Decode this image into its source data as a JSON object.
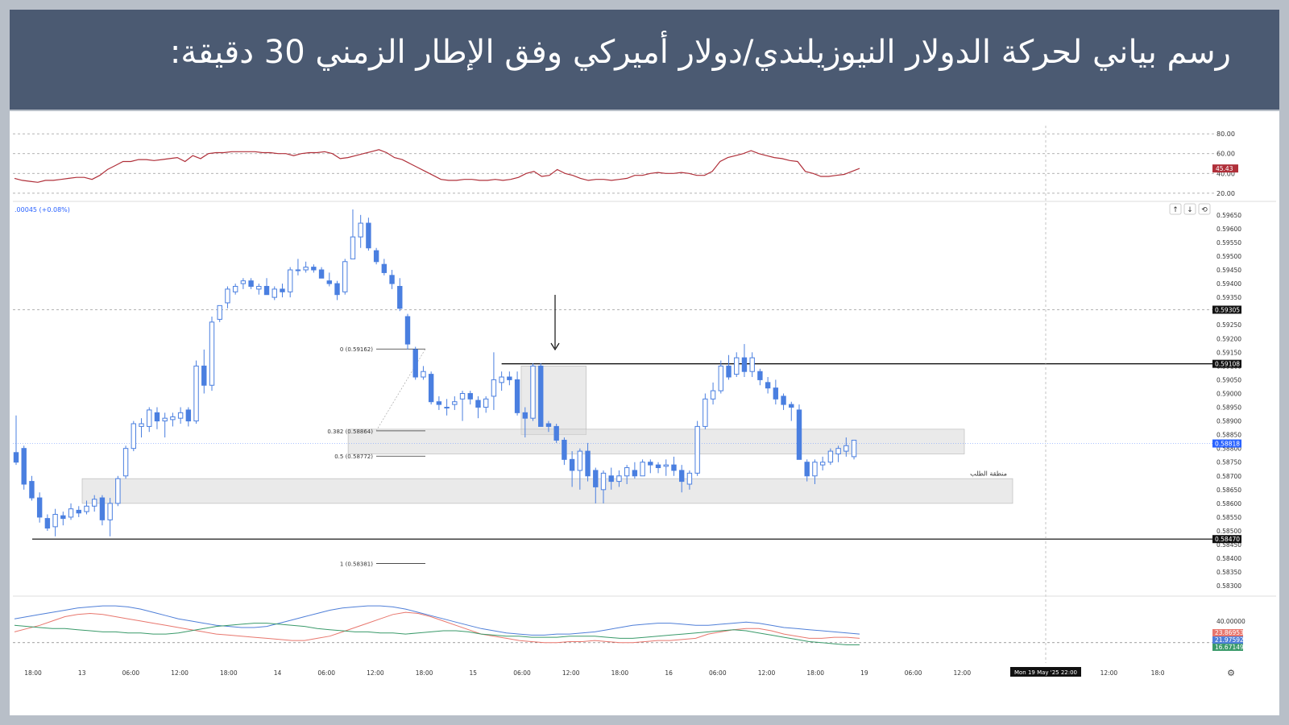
{
  "header": {
    "title": "رسم بياني لحركة الدولار النيوزيلندي/دولار أميركي وفق الإطار الزمني 30 دقيقة:"
  },
  "colors": {
    "header_bg": "#4b5a72",
    "candle": "#4a7fe0",
    "rsi_line": "#b0303a",
    "zone_fill": "#d9d9d9",
    "level_line": "#000000",
    "ind_blue": "#4f7fd8",
    "ind_red": "#e8776e",
    "ind_green": "#3a9a6a"
  },
  "chart_data": {
    "type": "candlestick",
    "change_label": ".00045 (+0.08%)",
    "rsi": {
      "ticks": [
        "80.00",
        "60.00",
        "40.00",
        "20.00"
      ],
      "current_label": "45.43",
      "values": [
        35,
        33,
        32,
        31,
        33,
        33,
        34,
        35,
        36,
        36,
        34,
        38,
        44,
        48,
        52,
        52,
        54,
        54,
        53,
        54,
        55,
        56,
        52,
        58,
        55,
        60,
        61,
        61,
        62,
        62,
        62,
        62,
        61,
        61,
        60,
        60,
        58,
        60,
        61,
        61,
        62,
        60,
        55,
        56,
        58,
        60,
        62,
        64,
        61,
        56,
        54,
        50,
        46,
        42,
        38,
        34,
        33,
        33,
        34,
        34,
        33,
        33,
        34,
        33,
        34,
        36,
        40,
        42,
        37,
        38,
        44,
        40,
        38,
        35,
        33,
        34,
        34,
        33,
        34,
        35,
        38,
        38,
        40,
        41,
        40,
        40,
        41,
        40,
        38,
        38,
        42,
        52,
        56,
        58,
        60,
        63,
        60,
        58,
        56,
        55,
        53,
        52,
        42,
        40,
        37,
        37,
        38,
        39,
        42,
        45
      ],
      "ylim": [
        15,
        85
      ]
    },
    "price": {
      "ticks": [
        "0.59650",
        "0.59600",
        "0.59550",
        "0.59500",
        "0.59450",
        "0.59400",
        "0.59350",
        "0.59300",
        "0.59250",
        "0.59200",
        "0.59150",
        "0.59100",
        "0.59050",
        "0.59000",
        "0.58950",
        "0.58900",
        "0.58850",
        "0.58800",
        "0.58750",
        "0.58700",
        "0.58650",
        "0.58600",
        "0.58550",
        "0.58500",
        "0.58450",
        "0.58400",
        "0.58350",
        "0.58300"
      ],
      "ylim": [
        0.5828,
        0.5967
      ],
      "current_label": "0.58818",
      "marked_label": "0.59305",
      "resistance": {
        "value": 0.59108,
        "label": "0.59108"
      },
      "support": {
        "value": 0.5847,
        "label": "0.58470"
      },
      "fib_levels": [
        {
          "label": "0 (0.59162)",
          "value": 0.59162
        },
        {
          "label": "0.382 (0.58864)",
          "value": 0.58864
        },
        {
          "label": "0.5 (0.58772)",
          "value": 0.58772
        },
        {
          "label": "1 (0.58381)",
          "value": 0.58381
        }
      ],
      "demand_zone_label": "منطقة الطلب",
      "candles": [
        [
          0.58785,
          0.5892,
          0.5874,
          0.5875
        ],
        [
          0.588,
          0.5881,
          0.5865,
          0.5867
        ],
        [
          0.5868,
          0.587,
          0.5861,
          0.5862
        ],
        [
          0.5862,
          0.5864,
          0.5853,
          0.5855
        ],
        [
          0.58545,
          0.5856,
          0.585,
          0.5851
        ],
        [
          0.58515,
          0.5858,
          0.5848,
          0.5856
        ],
        [
          0.58555,
          0.5857,
          0.5852,
          0.58545
        ],
        [
          0.5855,
          0.586,
          0.5854,
          0.5858
        ],
        [
          0.58575,
          0.5859,
          0.5855,
          0.58565
        ],
        [
          0.5857,
          0.5861,
          0.5856,
          0.5859
        ],
        [
          0.5859,
          0.5863,
          0.5857,
          0.58615
        ],
        [
          0.5862,
          0.5863,
          0.5852,
          0.5854
        ],
        [
          0.5854,
          0.5862,
          0.5848,
          0.586
        ],
        [
          0.586,
          0.587,
          0.5859,
          0.5869
        ],
        [
          0.587,
          0.5881,
          0.5869,
          0.588
        ],
        [
          0.588,
          0.589,
          0.5879,
          0.5889
        ],
        [
          0.5888,
          0.5891,
          0.5884,
          0.5889
        ],
        [
          0.5888,
          0.5895,
          0.5886,
          0.5894
        ],
        [
          0.5893,
          0.5895,
          0.5887,
          0.589
        ],
        [
          0.589,
          0.5893,
          0.5884,
          0.5891
        ],
        [
          0.58905,
          0.5893,
          0.5888,
          0.58915
        ],
        [
          0.5891,
          0.5895,
          0.5889,
          0.5893
        ],
        [
          0.5894,
          0.5895,
          0.5888,
          0.589
        ],
        [
          0.589,
          0.5912,
          0.5889,
          0.591
        ],
        [
          0.591,
          0.5916,
          0.59,
          0.5903
        ],
        [
          0.5903,
          0.5928,
          0.5901,
          0.5926
        ],
        [
          0.5927,
          0.5932,
          0.5926,
          0.5932
        ],
        [
          0.5933,
          0.5939,
          0.5931,
          0.5938
        ],
        [
          0.5937,
          0.594,
          0.5936,
          0.5939
        ],
        [
          0.594,
          0.5942,
          0.5938,
          0.5941
        ],
        [
          0.5941,
          0.5942,
          0.5938,
          0.5939
        ],
        [
          0.5938,
          0.594,
          0.5936,
          0.5939
        ],
        [
          0.5939,
          0.5942,
          0.5937,
          0.5936
        ],
        [
          0.5935,
          0.5939,
          0.5934,
          0.5938
        ],
        [
          0.5938,
          0.594,
          0.5935,
          0.5937
        ],
        [
          0.5937,
          0.5946,
          0.5935,
          0.5945
        ],
        [
          0.5945,
          0.5949,
          0.5943,
          0.5945
        ],
        [
          0.5945,
          0.5948,
          0.5944,
          0.5946
        ],
        [
          0.5946,
          0.5947,
          0.5944,
          0.5945
        ],
        [
          0.5945,
          0.5946,
          0.5942,
          0.5942
        ],
        [
          0.5941,
          0.5944,
          0.5939,
          0.594
        ],
        [
          0.594,
          0.5941,
          0.5934,
          0.5936
        ],
        [
          0.5937,
          0.5949,
          0.5936,
          0.5948
        ],
        [
          0.5949,
          0.5967,
          0.5949,
          0.5957
        ],
        [
          0.5957,
          0.5965,
          0.5953,
          0.5962
        ],
        [
          0.5962,
          0.5964,
          0.5952,
          0.5953
        ],
        [
          0.5952,
          0.5953,
          0.5947,
          0.5948
        ],
        [
          0.5947,
          0.5949,
          0.5943,
          0.5944
        ],
        [
          0.5943,
          0.5945,
          0.5938,
          0.594
        ],
        [
          0.5939,
          0.5942,
          0.593,
          0.5931
        ],
        [
          0.5928,
          0.5929,
          0.5916,
          0.5918
        ],
        [
          0.5916,
          0.5917,
          0.5905,
          0.5906
        ],
        [
          0.5906,
          0.591,
          0.5905,
          0.5908
        ],
        [
          0.5907,
          0.5908,
          0.5896,
          0.5897
        ],
        [
          0.5897,
          0.5899,
          0.5894,
          0.5896
        ],
        [
          0.5895,
          0.5898,
          0.5892,
          0.5895
        ],
        [
          0.5896,
          0.5899,
          0.5894,
          0.5897
        ],
        [
          0.5898,
          0.5901,
          0.589,
          0.59
        ],
        [
          0.59,
          0.5901,
          0.5896,
          0.5898
        ],
        [
          0.58975,
          0.5899,
          0.5891,
          0.5895
        ],
        [
          0.5895,
          0.5899,
          0.5893,
          0.5898
        ],
        [
          0.5899,
          0.5915,
          0.5894,
          0.5905
        ],
        [
          0.5904,
          0.5908,
          0.5901,
          0.5906
        ],
        [
          0.5906,
          0.5908,
          0.5903,
          0.5905
        ],
        [
          0.5905,
          0.5908,
          0.5892,
          0.5893
        ],
        [
          0.5893,
          0.5895,
          0.5884,
          0.5891
        ],
        [
          0.5891,
          0.5911,
          0.589,
          0.591
        ],
        [
          0.591,
          0.5911,
          0.5888,
          0.5888
        ],
        [
          0.5889,
          0.589,
          0.5886,
          0.5888
        ],
        [
          0.5888,
          0.5889,
          0.5882,
          0.5883
        ],
        [
          0.5883,
          0.5884,
          0.5874,
          0.5876
        ],
        [
          0.5876,
          0.5879,
          0.5866,
          0.5872
        ],
        [
          0.5872,
          0.588,
          0.5865,
          0.5879
        ],
        [
          0.5879,
          0.5882,
          0.5868,
          0.587
        ],
        [
          0.5872,
          0.5873,
          0.586,
          0.5866
        ],
        [
          0.5865,
          0.5872,
          0.586,
          0.5871
        ],
        [
          0.587,
          0.5873,
          0.5865,
          0.5868
        ],
        [
          0.5868,
          0.5872,
          0.5866,
          0.587
        ],
        [
          0.587,
          0.5874,
          0.5867,
          0.5873
        ],
        [
          0.5872,
          0.5875,
          0.5869,
          0.587
        ],
        [
          0.587,
          0.5876,
          0.587,
          0.5875
        ],
        [
          0.5875,
          0.5876,
          0.5871,
          0.5874
        ],
        [
          0.5874,
          0.5875,
          0.5871,
          0.5873
        ],
        [
          0.58735,
          0.5876,
          0.587,
          0.5874
        ],
        [
          0.5874,
          0.5877,
          0.587,
          0.5872
        ],
        [
          0.5872,
          0.5874,
          0.5864,
          0.5868
        ],
        [
          0.5867,
          0.5872,
          0.5865,
          0.5871
        ],
        [
          0.5871,
          0.589,
          0.587,
          0.5888
        ],
        [
          0.5888,
          0.59,
          0.5887,
          0.5898
        ],
        [
          0.5898,
          0.5904,
          0.5896,
          0.5901
        ],
        [
          0.5901,
          0.5912,
          0.59,
          0.591
        ],
        [
          0.591,
          0.5914,
          0.5905,
          0.5906
        ],
        [
          0.5907,
          0.5915,
          0.5906,
          0.5913
        ],
        [
          0.5913,
          0.5918,
          0.5906,
          0.5908
        ],
        [
          0.5908,
          0.5915,
          0.5906,
          0.5913
        ],
        [
          0.5908,
          0.5909,
          0.5903,
          0.5905
        ],
        [
          0.5904,
          0.5906,
          0.59,
          0.5902
        ],
        [
          0.5902,
          0.5905,
          0.5896,
          0.5898
        ],
        [
          0.5899,
          0.59,
          0.5894,
          0.5896
        ],
        [
          0.5896,
          0.5897,
          0.589,
          0.5895
        ],
        [
          0.5894,
          0.5896,
          0.5876,
          0.5876
        ],
        [
          0.5875,
          0.5876,
          0.5868,
          0.587
        ],
        [
          0.587,
          0.5876,
          0.5867,
          0.5875
        ],
        [
          0.5874,
          0.5877,
          0.5872,
          0.5875
        ],
        [
          0.5875,
          0.588,
          0.5874,
          0.5879
        ],
        [
          0.5878,
          0.5881,
          0.5875,
          0.588
        ],
        [
          0.5879,
          0.5884,
          0.5877,
          0.5881
        ],
        [
          0.5877,
          0.5883,
          0.5876,
          0.5883
        ]
      ]
    },
    "oscillator": {
      "ticks": [
        "40.00000"
      ],
      "labels": [
        "23.86953",
        "21.97592",
        "16.67149"
      ],
      "ylim": [
        5,
        60
      ],
      "series": [
        {
          "color": "#4f7fd8",
          "values": [
            42,
            44,
            46,
            48,
            50,
            52,
            53,
            54,
            54,
            53,
            51,
            48,
            45,
            42,
            40,
            38,
            36,
            35,
            34,
            34,
            35,
            38,
            41,
            44,
            47,
            50,
            52,
            53,
            54,
            54,
            53,
            51,
            48,
            45,
            42,
            39,
            36,
            33,
            31,
            29,
            28,
            27,
            27,
            28,
            28,
            29,
            30,
            32,
            34,
            36,
            37,
            38,
            38,
            37,
            36,
            36,
            37,
            38,
            39,
            38,
            36,
            34,
            33,
            32,
            31,
            30,
            29,
            28
          ]
        },
        {
          "color": "#e8776e",
          "values": [
            30,
            33,
            36,
            40,
            44,
            46,
            47,
            46,
            44,
            42,
            40,
            38,
            36,
            34,
            32,
            30,
            28,
            27,
            26,
            25,
            24,
            23,
            22,
            22,
            24,
            26,
            30,
            34,
            38,
            42,
            46,
            48,
            47,
            44,
            40,
            36,
            32,
            28,
            26,
            24,
            22,
            21,
            20,
            20,
            21,
            21,
            22,
            21,
            20,
            20,
            21,
            22,
            22,
            23,
            24,
            28,
            30,
            32,
            33,
            33,
            31,
            28,
            26,
            24,
            24,
            25,
            25,
            24
          ]
        },
        {
          "color": "#3a9a6a",
          "values": [
            36,
            35,
            34,
            33,
            33,
            32,
            31,
            30,
            30,
            29,
            29,
            28,
            28,
            29,
            31,
            33,
            35,
            36,
            37,
            38,
            38,
            37,
            36,
            35,
            33,
            32,
            31,
            30,
            30,
            29,
            29,
            28,
            29,
            30,
            31,
            31,
            30,
            28,
            27,
            26,
            26,
            25,
            25,
            25,
            26,
            26,
            26,
            25,
            24,
            24,
            25,
            26,
            27,
            28,
            29,
            30,
            31,
            32,
            31,
            29,
            27,
            25,
            23,
            21,
            20,
            19,
            18,
            18
          ]
        }
      ]
    },
    "x_ticks": [
      "18:00",
      "13",
      "06:00",
      "12:00",
      "18:00",
      "14",
      "06:00",
      "12:00",
      "18:00",
      "15",
      "06:00",
      "12:00",
      "18:00",
      "16",
      "06:00",
      "12:00",
      "18:00",
      "19",
      "06:00",
      "12:00",
      "",
      "06:00",
      "12:00",
      "18:0"
    ],
    "crosshair_date": "Mon 19 May '25   22:00"
  }
}
